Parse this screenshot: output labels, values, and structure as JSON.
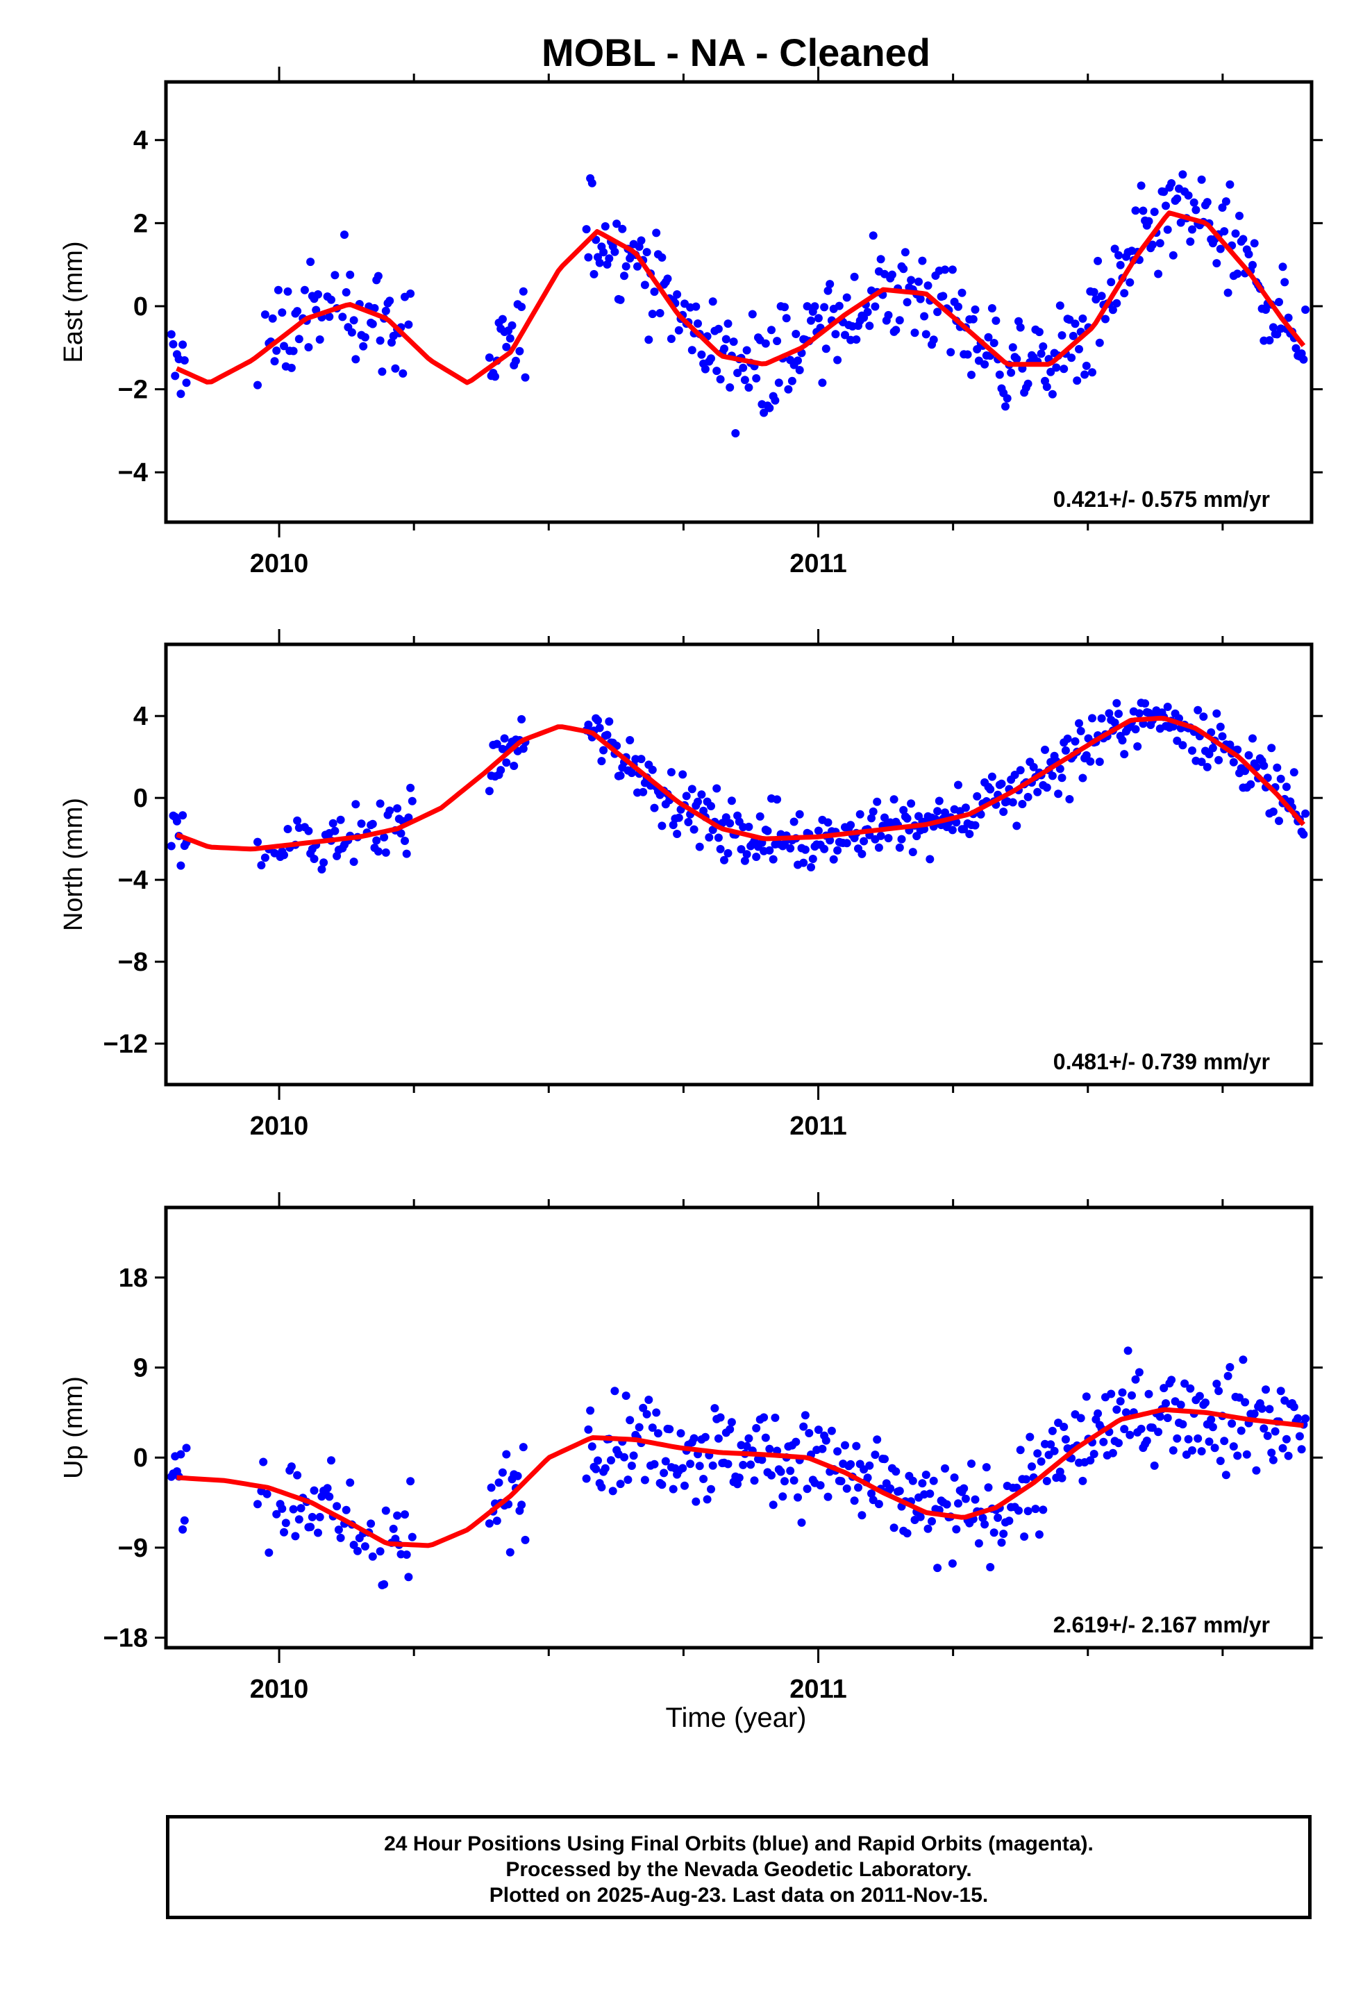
{
  "title": "MOBL  - NA - Cleaned",
  "xlabel": "Time (year)",
  "footer": {
    "line1": "24 Hour Positions Using Final Orbits (blue) and Rapid Orbits (magenta).",
    "line2": "Processed by the Nevada Geodetic Laboratory.",
    "line3": "Plotted on 2025-Aug-23. Last data on 2011-Nov-15."
  },
  "colors": {
    "points": "#0000ff",
    "fit": "#ff0000",
    "frame": "#000000"
  },
  "chart_data": [
    {
      "type": "scatter",
      "panel": "east",
      "ylabel": "East (mm)",
      "rate_text": "0.421+/- 0.575 mm/yr",
      "xlim": [
        2009.79,
        2011.915
      ],
      "ylim": [
        -5.2,
        5.4
      ],
      "x_ticks": [
        2010,
        2011
      ],
      "y_ticks": [
        -4,
        -2,
        0,
        2,
        4
      ],
      "grid": false,
      "fit_curve": {
        "x": [
          2009.81,
          2009.87,
          2009.95,
          2010.05,
          2010.13,
          2010.2,
          2010.28,
          2010.35,
          2010.43,
          2010.52,
          2010.59,
          2010.66,
          2010.74,
          2010.82,
          2010.9,
          2010.97,
          2011.05,
          2011.12,
          2011.2,
          2011.28,
          2011.35,
          2011.43,
          2011.51,
          2011.59,
          2011.65,
          2011.72,
          2011.8,
          2011.86,
          2011.9
        ],
        "y": [
          -1.5,
          -1.85,
          -1.3,
          -0.3,
          0.05,
          -0.3,
          -1.3,
          -1.85,
          -1.1,
          0.9,
          1.8,
          1.3,
          -0.2,
          -1.2,
          -1.4,
          -1.0,
          -0.2,
          0.4,
          0.3,
          -0.6,
          -1.4,
          -1.4,
          -0.5,
          1.2,
          2.25,
          2.0,
          0.8,
          -0.3,
          -0.95
        ]
      }
    },
    {
      "type": "scatter",
      "panel": "north",
      "ylabel": "North (mm)",
      "rate_text": "0.481+/- 0.739 mm/yr",
      "xlim": [
        2009.79,
        2011.915
      ],
      "ylim": [
        -14,
        7.5
      ],
      "x_ticks": [
        2010,
        2011
      ],
      "y_ticks": [
        -12,
        -8,
        -4,
        0,
        4
      ],
      "grid": false,
      "fit_curve": {
        "x": [
          2009.81,
          2009.87,
          2009.95,
          2010.05,
          2010.15,
          2010.22,
          2010.3,
          2010.38,
          2010.45,
          2010.52,
          2010.58,
          2010.66,
          2010.74,
          2010.82,
          2010.9,
          2011.0,
          2011.1,
          2011.2,
          2011.28,
          2011.36,
          2011.44,
          2011.52,
          2011.58,
          2011.64,
          2011.7,
          2011.78,
          2011.85,
          2011.9
        ],
        "y": [
          -1.8,
          -2.4,
          -2.5,
          -2.2,
          -1.9,
          -1.5,
          -0.5,
          1.2,
          2.8,
          3.5,
          3.2,
          1.5,
          -0.2,
          -1.5,
          -2.0,
          -1.9,
          -1.6,
          -1.3,
          -0.8,
          0.3,
          1.6,
          2.9,
          3.8,
          3.9,
          3.4,
          2.0,
          0.2,
          -1.3
        ]
      }
    },
    {
      "type": "scatter",
      "panel": "up",
      "ylabel": "Up (mm)",
      "rate_text": "2.619+/- 2.167 mm/yr",
      "xlim": [
        2009.79,
        2011.915
      ],
      "ylim": [
        -19,
        25
      ],
      "x_ticks": [
        2010,
        2011
      ],
      "y_ticks": [
        -18,
        -9,
        0,
        9,
        18
      ],
      "grid": false,
      "fit_curve": {
        "x": [
          2009.81,
          2009.9,
          2009.98,
          2010.06,
          2010.13,
          2010.2,
          2010.28,
          2010.35,
          2010.43,
          2010.5,
          2010.58,
          2010.66,
          2010.74,
          2010.82,
          2010.9,
          2010.98,
          2011.05,
          2011.12,
          2011.2,
          2011.27,
          2011.33,
          2011.4,
          2011.48,
          2011.56,
          2011.64,
          2011.72,
          2011.8,
          2011.9
        ],
        "y": [
          -2,
          -2.3,
          -3,
          -4.5,
          -6.5,
          -8.6,
          -8.8,
          -7.2,
          -3.8,
          0,
          2,
          1.8,
          1.0,
          0.5,
          0.3,
          0,
          -1.5,
          -3.5,
          -5.5,
          -6,
          -5,
          -2.5,
          1,
          3.8,
          4.8,
          4.5,
          3.8,
          3.2
        ]
      }
    }
  ]
}
